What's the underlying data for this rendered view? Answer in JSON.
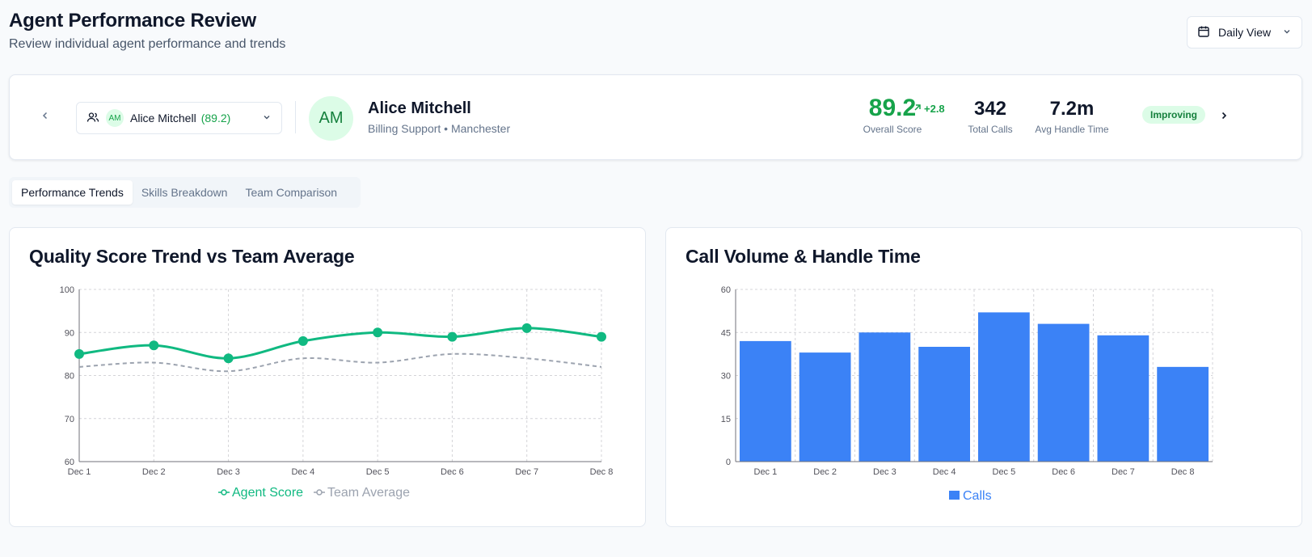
{
  "header": {
    "title": "Agent Performance Review",
    "subtitle": "Review individual agent performance and trends",
    "view_select": {
      "label": "Daily View",
      "icon": "calendar-icon"
    }
  },
  "agent": {
    "selector": {
      "initials": "AM",
      "name": "Alice Mitchell",
      "score": "(89.2)"
    },
    "initials": "AM",
    "name": "Alice Mitchell",
    "meta": "Billing Support • Manchester",
    "overall_score": {
      "value": "89.2",
      "label": "Overall Score",
      "change": "+2.8"
    },
    "total_calls": {
      "value": "342",
      "label": "Total Calls"
    },
    "avg_handle_time": {
      "value": "7.2m",
      "label": "Avg Handle Time"
    },
    "status": "Improving"
  },
  "tabs": [
    {
      "label": "Performance Trends",
      "active": true
    },
    {
      "label": "Skills Breakdown",
      "active": false
    },
    {
      "label": "Team Comparison",
      "active": false
    }
  ],
  "colors": {
    "green": "#10b981",
    "gray": "#9ca3af",
    "blue": "#3b82f6"
  },
  "chart_data": [
    {
      "type": "line",
      "title": "Quality Score Trend vs Team Average",
      "categories": [
        "Dec 1",
        "Dec 2",
        "Dec 3",
        "Dec 4",
        "Dec 5",
        "Dec 6",
        "Dec 7",
        "Dec 8"
      ],
      "series": [
        {
          "name": "Agent Score",
          "values": [
            85,
            87,
            84,
            88,
            90,
            89,
            91,
            89
          ],
          "color": "#10b981",
          "style": "solid"
        },
        {
          "name": "Team Average",
          "values": [
            82,
            83,
            81,
            84,
            83,
            85,
            84,
            82
          ],
          "color": "#9ca3af",
          "style": "dashed"
        }
      ],
      "yticks": [
        60,
        70,
        80,
        90,
        100
      ],
      "ylim": [
        60,
        100
      ],
      "grid": true,
      "legend": "bottom-center"
    },
    {
      "type": "bar",
      "title": "Call Volume & Handle Time",
      "categories": [
        "Dec 1",
        "Dec 2",
        "Dec 3",
        "Dec 4",
        "Dec 5",
        "Dec 6",
        "Dec 7",
        "Dec 8"
      ],
      "series": [
        {
          "name": "Calls",
          "values": [
            42,
            38,
            45,
            40,
            52,
            48,
            44,
            33
          ],
          "color": "#3b82f6"
        }
      ],
      "yticks": [
        0,
        15,
        30,
        45,
        60
      ],
      "ylim": [
        0,
        60
      ],
      "grid": true,
      "legend": "bottom-center"
    }
  ]
}
